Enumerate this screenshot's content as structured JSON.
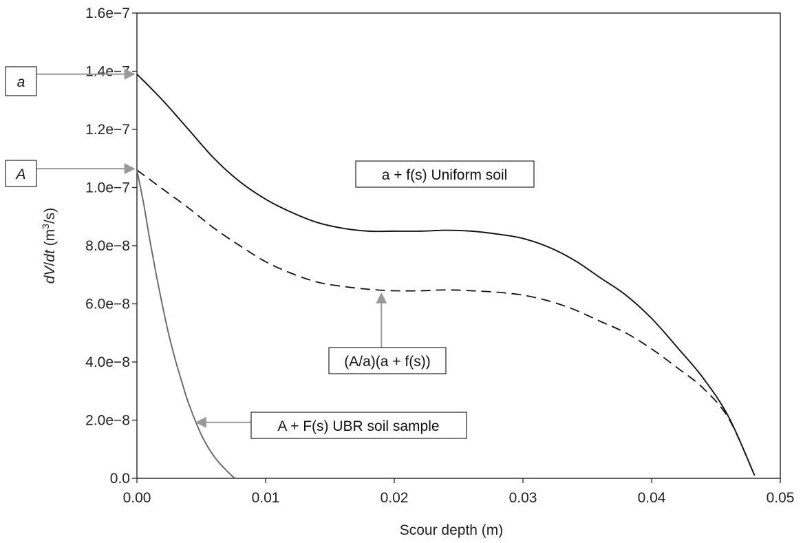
{
  "chart_data": {
    "type": "line",
    "title": "",
    "xlabel": "Scour depth (m)",
    "ylabel": {
      "pre": "dV",
      "slash": "/",
      "dt": "dt",
      "units_open": " (m",
      "sup": "3",
      "units_close": "/s)"
    },
    "xlim": [
      0,
      0.05
    ],
    "ylim": [
      0,
      1.6e-07
    ],
    "x_ticks": [
      0,
      0.01,
      0.02,
      0.03,
      0.04,
      0.05
    ],
    "x_tick_labels": [
      "0.00",
      "0.01",
      "0.02",
      "0.03",
      "0.04",
      "0.05"
    ],
    "y_ticks": [
      0,
      2e-08,
      4e-08,
      6e-08,
      8e-08,
      1e-07,
      1.2e-07,
      1.4e-07,
      1.6e-07
    ],
    "y_tick_labels": [
      "0.0",
      "2.0e−8",
      "4.0e−8",
      "6.0e−8",
      "8.0e−8",
      "1.0e−7",
      "1.2e−7",
      "1.4e−7",
      "1.6e−7"
    ],
    "grid": false,
    "series": [
      {
        "style": "solid",
        "color": "#111111",
        "x": [
          0,
          0.002,
          0.004,
          0.006,
          0.008,
          0.01,
          0.012,
          0.014,
          0.016,
          0.018,
          0.02,
          0.022,
          0.024,
          0.026,
          0.028,
          0.03,
          0.032,
          0.034,
          0.036,
          0.038,
          0.04,
          0.042,
          0.044,
          0.046,
          0.048
        ],
        "values": [
          1.39e-07,
          1.3e-07,
          1.2e-07,
          1.1e-07,
          1.02e-07,
          9.6e-08,
          9.15e-08,
          8.8e-08,
          8.6e-08,
          8.5e-08,
          8.5e-08,
          8.5e-08,
          8.53e-08,
          8.5e-08,
          8.4e-08,
          8.25e-08,
          7.95e-08,
          7.5e-08,
          6.9e-08,
          6.3e-08,
          5.5e-08,
          4.5e-08,
          3.45e-08,
          2.1e-08,
          1e-09
        ]
      },
      {
        "style": "dashed",
        "color": "#111111",
        "x": [
          0,
          0.002,
          0.004,
          0.006,
          0.008,
          0.01,
          0.012,
          0.014,
          0.016,
          0.018,
          0.02,
          0.022,
          0.024,
          0.026,
          0.028,
          0.03,
          0.032,
          0.034,
          0.036,
          0.038,
          0.04,
          0.042,
          0.044,
          0.046,
          0.048
        ],
        "values": [
          1.06e-07,
          9.95e-08,
          9.3e-08,
          8.6e-08,
          8e-08,
          7.45e-08,
          7.05e-08,
          6.75e-08,
          6.6e-08,
          6.5e-08,
          6.45e-08,
          6.45e-08,
          6.48e-08,
          6.45e-08,
          6.4e-08,
          6.3e-08,
          6.1e-08,
          5.8e-08,
          5.4e-08,
          5e-08,
          4.45e-08,
          3.8e-08,
          3.1e-08,
          2.05e-08,
          1e-09
        ]
      },
      {
        "style": "solid",
        "color": "#666666",
        "x": [
          0,
          0.0005,
          0.001,
          0.0015,
          0.002,
          0.0025,
          0.003,
          0.0035,
          0.004,
          0.005,
          0.006,
          0.007,
          0.0076
        ],
        "values": [
          1.06e-07,
          9.5e-08,
          8.2e-08,
          7e-08,
          5.9e-08,
          4.9e-08,
          4.05e-08,
          3.3e-08,
          2.6e-08,
          1.5e-08,
          7.5e-09,
          2.5e-09,
          0
        ]
      }
    ],
    "annotations": {
      "left_a": {
        "label": "a",
        "x": 0,
        "y": 1.39e-07
      },
      "left_A": {
        "label": "A",
        "x": 0,
        "y": 1.06e-07
      },
      "uniform": {
        "label": "a + f(s) Uniform soil"
      },
      "aa": {
        "label": "(A/a)(a + f(s))",
        "x": 0.019,
        "y": 6.5e-08
      },
      "ubr": {
        "label": "A + F(s) UBR soil sample",
        "x": 0.0043,
        "y": 1.9e-08
      }
    }
  }
}
